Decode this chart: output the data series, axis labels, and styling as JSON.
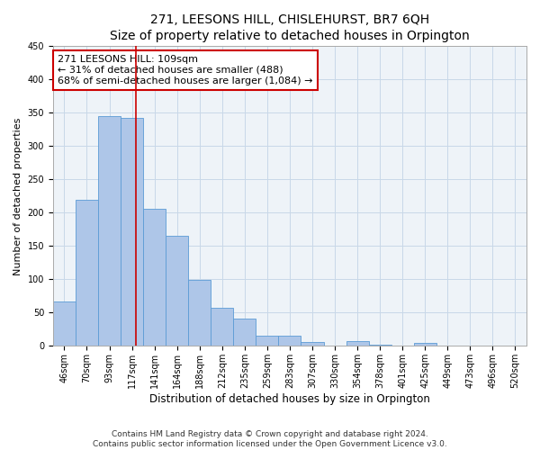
{
  "title": "271, LEESONS HILL, CHISLEHURST, BR7 6QH",
  "subtitle": "Size of property relative to detached houses in Orpington",
  "xlabel": "Distribution of detached houses by size in Orpington",
  "ylabel": "Number of detached properties",
  "bar_labels": [
    "46sqm",
    "70sqm",
    "93sqm",
    "117sqm",
    "141sqm",
    "164sqm",
    "188sqm",
    "212sqm",
    "235sqm",
    "259sqm",
    "283sqm",
    "307sqm",
    "330sqm",
    "354sqm",
    "378sqm",
    "401sqm",
    "425sqm",
    "449sqm",
    "473sqm",
    "496sqm",
    "520sqm"
  ],
  "bar_values": [
    67,
    220,
    345,
    343,
    206,
    165,
    99,
    57,
    41,
    16,
    15,
    6,
    1,
    7,
    2,
    1,
    5,
    1,
    0,
    0,
    1
  ],
  "bar_color": "#aec6e8",
  "bar_edge_color": "#5b9bd5",
  "annotation_text": "271 LEESONS HILL: 109sqm\n← 31% of detached houses are smaller (488)\n68% of semi-detached houses are larger (1,084) →",
  "annotation_box_color": "#ffffff",
  "annotation_border_color": "#cc0000",
  "vline_color": "#cc0000",
  "grid_color": "#c8d8e8",
  "background_color": "#eef3f8",
  "footer_line1": "Contains HM Land Registry data © Crown copyright and database right 2024.",
  "footer_line2": "Contains public sector information licensed under the Open Government Licence v3.0.",
  "ylim": [
    0,
    450
  ],
  "title_fontsize": 10,
  "xlabel_fontsize": 8.5,
  "ylabel_fontsize": 8,
  "tick_fontsize": 7,
  "annotation_fontsize": 8,
  "footer_fontsize": 6.5
}
